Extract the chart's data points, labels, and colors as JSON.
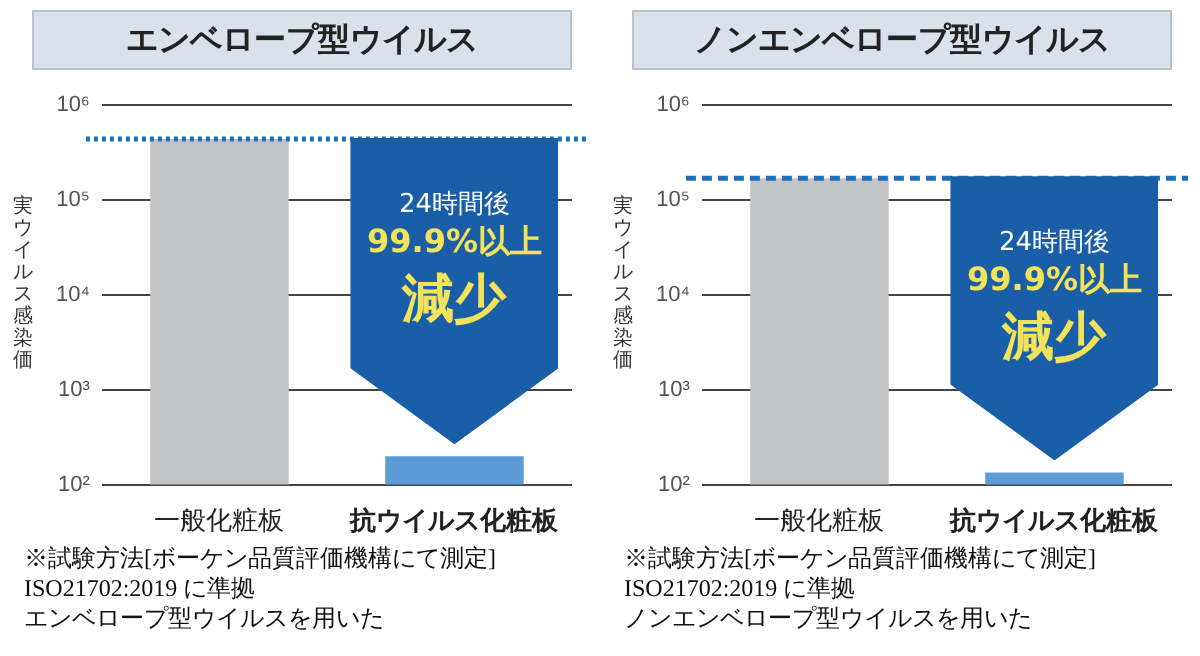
{
  "chart_data": [
    {
      "type": "bar",
      "title": "エンベロープ型ウイルス",
      "ylabel": "実ウイルス感染価",
      "categories": [
        "一般化粧板",
        "抗ウイルス化粧板"
      ],
      "values": [
        440000,
        200
      ],
      "colors": [
        "#c1c3c5",
        "#5c9bd6"
      ],
      "log": true,
      "ylim": [
        100,
        1000000
      ],
      "yticks": [
        {
          "value": 100,
          "label": "10²"
        },
        {
          "value": 1000,
          "label": "10³"
        },
        {
          "value": 10000,
          "label": "10⁴"
        },
        {
          "value": 100000,
          "label": "10⁵"
        },
        {
          "value": 1000000,
          "label": "10⁶"
        }
      ],
      "grid": "y",
      "legend": false,
      "ref_lines": [
        {
          "axis": "y",
          "value": 440000,
          "color": "#1f6fb8",
          "line_style": "dotted"
        }
      ],
      "annotations": [
        "24時間後",
        "99.9%以上",
        "減少",
        "※試験方法[ボーケン品質評価機構にて測定]",
        "ISO21702:2019 に準拠",
        "エンベロープ型ウイルスを用いた"
      ]
    },
    {
      "type": "bar",
      "title": "ノンエンベロープ型ウイルス",
      "ylabel": "実ウイルス感染価",
      "categories": [
        "一般化粧板",
        "抗ウイルス化粧板"
      ],
      "values": [
        170000,
        135
      ],
      "colors": [
        "#c1c3c5",
        "#5c9bd6"
      ],
      "log": true,
      "ylim": [
        100,
        1000000
      ],
      "yticks": [
        {
          "value": 100,
          "label": "10²"
        },
        {
          "value": 1000,
          "label": "10³"
        },
        {
          "value": 10000,
          "label": "10⁴"
        },
        {
          "value": 100000,
          "label": "10⁵"
        },
        {
          "value": 1000000,
          "label": "10⁶"
        }
      ],
      "grid": "y",
      "legend": false,
      "ref_lines": [
        {
          "axis": "y",
          "value": 170000,
          "color": "#1f6fb8",
          "line_style": "dashed"
        }
      ],
      "annotations": [
        "24時間後",
        "99.9%以上",
        "減少",
        "※試験方法[ボーケン品質評価機構にて測定]",
        "ISO21702:2019 に準拠",
        "ノンエンベロープ型ウイルスを用いた"
      ]
    }
  ]
}
